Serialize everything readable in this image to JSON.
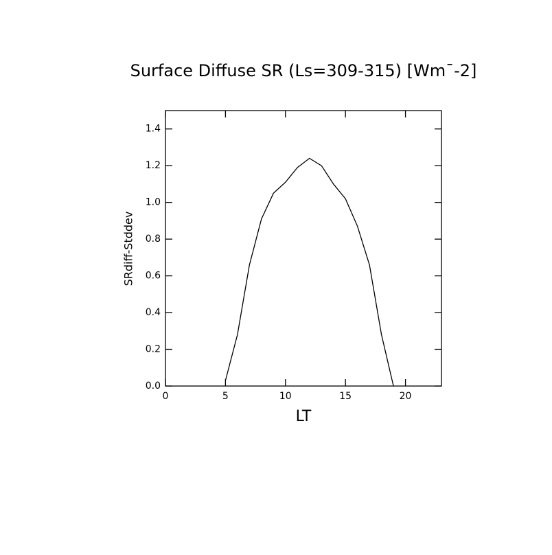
{
  "chart_data": {
    "type": "line",
    "title": "Surface Diffuse SR (Ls=309-315) [Wm¯-2]",
    "x_label": "LT",
    "y_label": "SRdiff-Stddev",
    "x": [
      5,
      6,
      7,
      8,
      9,
      10,
      11,
      12,
      13,
      14,
      15,
      16,
      17,
      18,
      19
    ],
    "series": [
      {
        "color": "#000000",
        "values": [
          0.03,
          0.28,
          0.66,
          0.91,
          1.05,
          1.11,
          1.19,
          1.24,
          1.2,
          1.1,
          1.02,
          0.87,
          0.66,
          0.28,
          0.0
        ]
      }
    ],
    "xlim": [
      0,
      23
    ],
    "xticks": [
      0,
      5,
      10,
      15,
      20
    ],
    "ylim": [
      0,
      1.5
    ],
    "yticks": [
      {
        "value": 0,
        "label": "0.0"
      },
      0.2,
      0.4,
      0.6,
      0.8,
      {
        "value": 1,
        "label": "1.0"
      },
      1.2,
      1.4
    ]
  }
}
